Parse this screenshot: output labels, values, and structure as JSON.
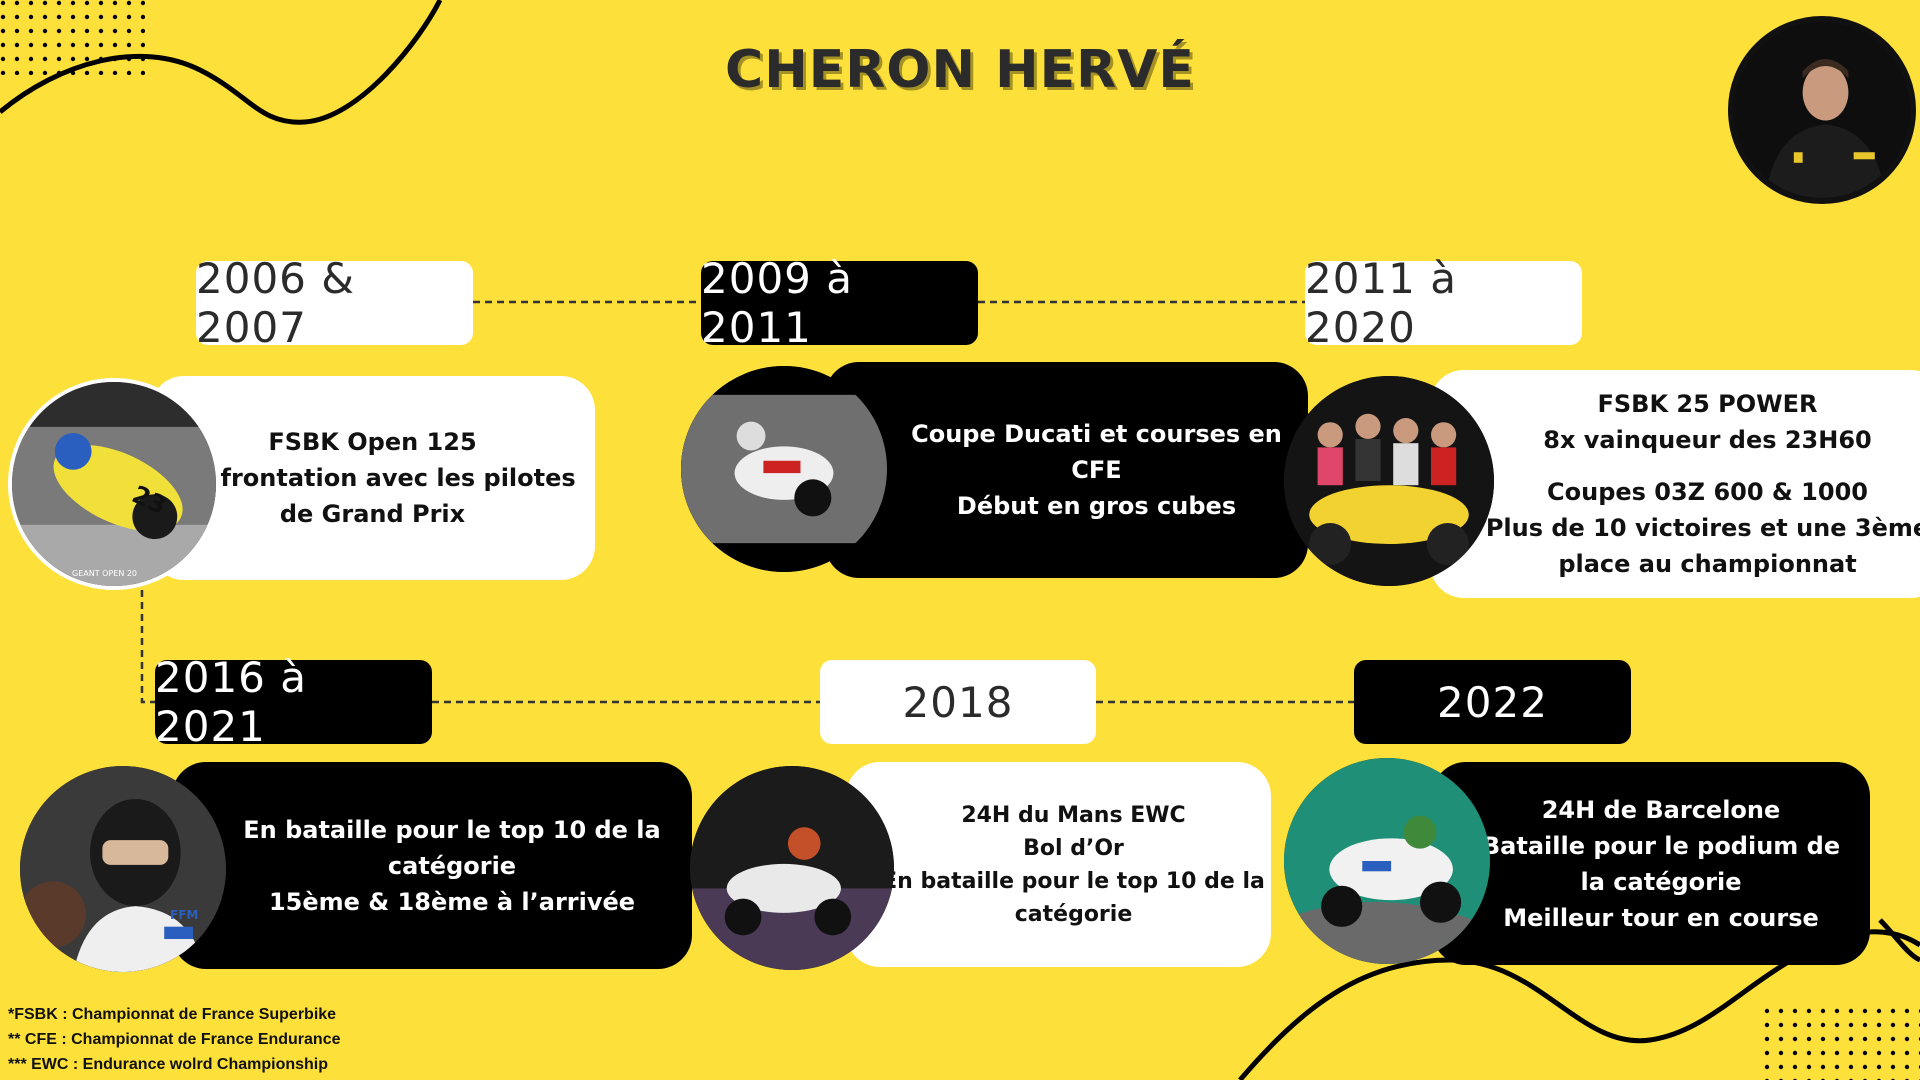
{
  "title": "CHERON HERVÉ",
  "colors": {
    "background": "#FDE03A",
    "dark": "#000000",
    "light": "#FFFFFF"
  },
  "timeline": [
    {
      "year": "2006 & 2007",
      "lines": [
        "FSBK Open 125",
        "Confrontation avec les pilotes",
        "de Grand Prix"
      ],
      "photo_caption": "GEANT OPEN 20"
    },
    {
      "year": "2009 à 2011",
      "lines": [
        "Coupe Ducati et courses en",
        "CFE",
        "Début en gros cubes"
      ]
    },
    {
      "year": "2011 à 2020",
      "lines_a": [
        "FSBK 25 POWER",
        "8x vainqueur des 23H60"
      ],
      "lines_b": [
        "Coupes 03Z 600 & 1000",
        "Plus de 10 victoires et une 3ème",
        "place au championnat"
      ]
    },
    {
      "year": "2016 à 2021",
      "lines": [
        "En bataille pour le top 10 de la",
        "catégorie",
        "15ème & 18ème à l’arrivée"
      ],
      "photo_badge": "FFM"
    },
    {
      "year": "2018",
      "lines": [
        "24H du Mans EWC",
        "Bol d’Or",
        "En bataille pour le top 10 de la",
        "catégorie"
      ]
    },
    {
      "year": "2022",
      "lines": [
        "24H  de Barcelone",
        "Bataille pour le podium de",
        "la catégorie",
        "Meilleur tour en course"
      ]
    }
  ],
  "footnotes": [
    "*FSBK : Championnat de France Superbike",
    "** CFE : Championnat de France Endurance",
    "*** EWC : Endurance wolrd Championship"
  ]
}
